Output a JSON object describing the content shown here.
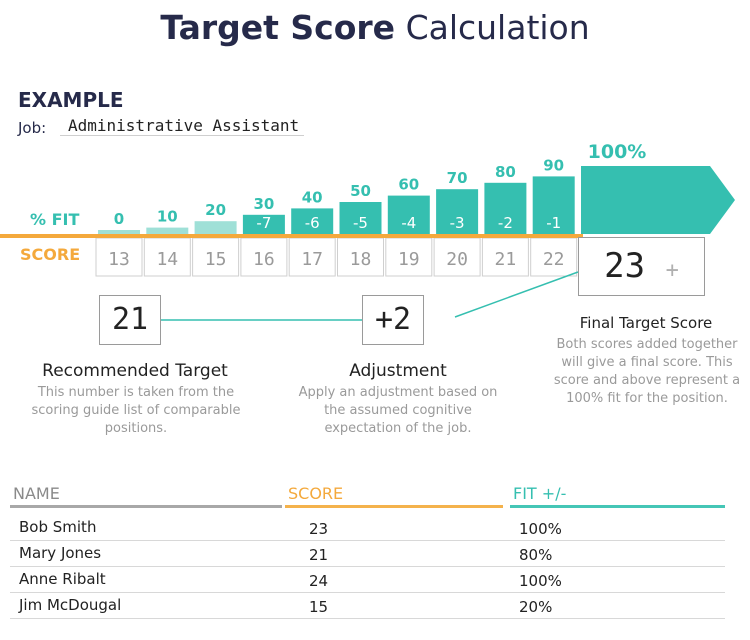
{
  "title": {
    "bold": "Target Score",
    "light": "Calculation"
  },
  "example": {
    "heading": "EXAMPLE",
    "job_label": "Job:",
    "job_value": "Administrative Assistant"
  },
  "chart_data": {
    "type": "bar",
    "fit_label": "% FIT",
    "score_label": "SCORE",
    "categories": [
      "13",
      "14",
      "15",
      "16",
      "17",
      "18",
      "19",
      "20",
      "21",
      "22"
    ],
    "fit_values": [
      0,
      10,
      20,
      30,
      40,
      50,
      60,
      70,
      80,
      90
    ],
    "fit_labels": [
      "0",
      "10",
      "20",
      "30",
      "40",
      "50",
      "60",
      "70",
      "80",
      "90"
    ],
    "offsets": [
      "",
      "",
      "",
      "-7",
      "-6",
      "-5",
      "-4",
      "-3",
      "-2",
      "-1"
    ],
    "final_fit": "100%",
    "final_fit_value": 100
  },
  "colors": {
    "teal": "#35bfb0",
    "teal_light": "#9fe0d7",
    "orange": "#f4a93c",
    "navy": "#262a4a"
  },
  "steps": {
    "recommended": {
      "value": "21",
      "title": "Recommended Target",
      "text": "This number is taken from the scoring guide list of comparable positions."
    },
    "adjustment": {
      "value": "+2",
      "title": "Adjustment",
      "text": "Apply an adjustment based on the assumed cognitive expectation of the job."
    },
    "final": {
      "value": "23",
      "plus": "+",
      "title": "Final Target Score",
      "text": "Both scores added together will give a final score. This score and above represent a 100% fit for the position."
    }
  },
  "table": {
    "headers": {
      "name": "NAME",
      "score": "SCORE",
      "fit": "FIT  +/-"
    },
    "rows": [
      {
        "name": "Bob Smith",
        "score": "23",
        "fit": "100%"
      },
      {
        "name": "Mary Jones",
        "score": "21",
        "fit": "80%"
      },
      {
        "name": "Anne Ribalt",
        "score": "24",
        "fit": "100%"
      },
      {
        "name": "Jim McDougal",
        "score": "15",
        "fit": "20%"
      }
    ]
  }
}
